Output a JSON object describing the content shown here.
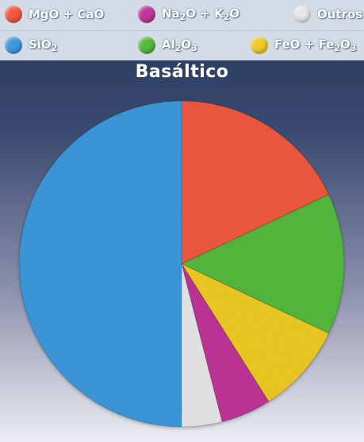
{
  "colors": {
    "mgo_cao": "#ef5a40",
    "na2o_k2o": "#c0359a",
    "outros": "#e6e6e8",
    "sio2": "#3d98dc",
    "al2o3": "#55b93c",
    "feo_fe2o3": "#eecb26"
  },
  "chart_data": {
    "type": "pie",
    "title": "Basáltico",
    "legend": [
      {
        "key": "mgo_cao",
        "label": "MgO + CaO"
      },
      {
        "key": "na2o_k2o",
        "label": "Na2O + K2O"
      },
      {
        "key": "outros",
        "label": "Outros"
      },
      {
        "key": "sio2",
        "label": "SiO2"
      },
      {
        "key": "al2o3",
        "label": "Al2O3"
      },
      {
        "key": "feo_fe2o3",
        "label": "FeO + Fe2O3"
      }
    ],
    "slices": [
      {
        "key": "mgo_cao",
        "label": "MgO + CaO",
        "value": 18
      },
      {
        "key": "al2o3",
        "label": "Al2O3",
        "value": 14
      },
      {
        "key": "feo_fe2o3",
        "label": "FeO + Fe2O3",
        "value": 9
      },
      {
        "key": "na2o_k2o",
        "label": "Na2O + K2O",
        "value": 5
      },
      {
        "key": "outros",
        "label": "Outros",
        "value": 4
      },
      {
        "key": "sio2",
        "label": "SiO2",
        "value": 50
      }
    ],
    "legend_position": "top"
  }
}
